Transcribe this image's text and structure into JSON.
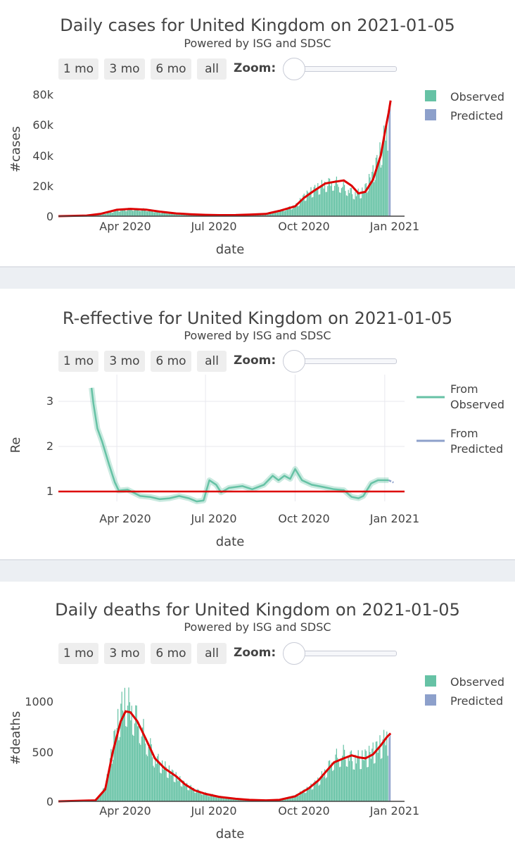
{
  "controls": {
    "buttons": [
      "1 mo",
      "3 mo",
      "6 mo",
      "all"
    ],
    "zoom_label": "Zoom:"
  },
  "colors": {
    "observed": "#66c2a5",
    "predicted": "#8da0cb",
    "model_line": "#dd0000",
    "reference_line": "#dd0000"
  },
  "chart_data": [
    {
      "type": "bar",
      "title": "Daily cases for United Kingdom on 2021-01-05",
      "subtitle": "Powered by ISG and SDSC",
      "xlabel": "date",
      "ylabel": "#cases",
      "x_ticks": [
        "Apr 2020",
        "Jul 2020",
        "Oct 2020",
        "Jan 2021"
      ],
      "y_ticks": [
        "0",
        "20k",
        "40k",
        "60k",
        "80k"
      ],
      "ylim": [
        0,
        80000
      ],
      "legend": [
        "Observed",
        "Predicted"
      ],
      "legend_position": "top-right",
      "observed": {
        "name": "Observed",
        "points": [
          [
            "2020-02-01",
            0
          ],
          [
            "2020-03-01",
            200
          ],
          [
            "2020-03-15",
            1200
          ],
          [
            "2020-04-01",
            4000
          ],
          [
            "2020-04-15",
            5000
          ],
          [
            "2020-05-01",
            4500
          ],
          [
            "2020-05-15",
            2800
          ],
          [
            "2020-06-01",
            1800
          ],
          [
            "2020-06-15",
            1300
          ],
          [
            "2020-07-01",
            900
          ],
          [
            "2020-07-15",
            650
          ],
          [
            "2020-08-01",
            800
          ],
          [
            "2020-08-15",
            1100
          ],
          [
            "2020-09-01",
            1600
          ],
          [
            "2020-09-15",
            3800
          ],
          [
            "2020-10-01",
            7000
          ],
          [
            "2020-10-10",
            13500
          ],
          [
            "2020-10-20",
            18000
          ],
          [
            "2020-11-01",
            22000
          ],
          [
            "2020-11-10",
            23500
          ],
          [
            "2020-11-20",
            20000
          ],
          [
            "2020-12-01",
            15000
          ],
          [
            "2020-12-10",
            17000
          ],
          [
            "2020-12-20",
            30000
          ],
          [
            "2020-12-28",
            45000
          ],
          [
            "2021-01-02",
            58000
          ],
          [
            "2021-01-04",
            60000
          ]
        ]
      },
      "predicted": {
        "name": "Predicted",
        "points": [
          [
            "2021-01-05",
            70000
          ],
          [
            "2021-01-06",
            74000
          ],
          [
            "2021-01-07",
            76000
          ]
        ]
      },
      "model_curve": [
        [
          "2020-02-01",
          0
        ],
        [
          "2020-03-01",
          400
        ],
        [
          "2020-03-15",
          1500
        ],
        [
          "2020-04-01",
          4200
        ],
        [
          "2020-04-15",
          4800
        ],
        [
          "2020-05-01",
          4300
        ],
        [
          "2020-05-15",
          3000
        ],
        [
          "2020-06-01",
          1800
        ],
        [
          "2020-06-15",
          1300
        ],
        [
          "2020-07-01",
          900
        ],
        [
          "2020-07-15",
          700
        ],
        [
          "2020-08-01",
          750
        ],
        [
          "2020-08-15",
          1000
        ],
        [
          "2020-09-01",
          1500
        ],
        [
          "2020-09-15",
          3500
        ],
        [
          "2020-10-01",
          6500
        ],
        [
          "2020-10-10",
          12000
        ],
        [
          "2020-10-20",
          16500
        ],
        [
          "2020-11-01",
          21500
        ],
        [
          "2020-11-10",
          22500
        ],
        [
          "2020-11-20",
          23500
        ],
        [
          "2020-11-28",
          20000
        ],
        [
          "2020-12-05",
          15000
        ],
        [
          "2020-12-12",
          16000
        ],
        [
          "2020-12-20",
          24000
        ],
        [
          "2020-12-28",
          40000
        ],
        [
          "2021-01-02",
          58000
        ],
        [
          "2021-01-05",
          68000
        ],
        [
          "2021-01-07",
          76000
        ]
      ]
    },
    {
      "type": "line",
      "title": "R-effective for United Kingdom on 2021-01-05",
      "subtitle": "Powered by ISG and SDSC",
      "xlabel": "date",
      "ylabel": "Re",
      "x_ticks": [
        "Apr 2020",
        "Jul 2020",
        "Oct 2020",
        "Jan 2021"
      ],
      "y_ticks": [
        "1",
        "2",
        "3"
      ],
      "ylim": [
        0.4,
        3.5
      ],
      "grid": true,
      "legend": [
        "From Observed",
        "From Predicted"
      ],
      "legend_position": "top-right",
      "reference_value": 1,
      "observed": {
        "name": "From Observed",
        "points": [
          [
            "2020-03-06",
            3.3
          ],
          [
            "2020-03-08",
            2.95
          ],
          [
            "2020-03-12",
            2.4
          ],
          [
            "2020-03-17",
            2.1
          ],
          [
            "2020-03-24",
            1.6
          ],
          [
            "2020-03-30",
            1.2
          ],
          [
            "2020-04-03",
            1.02
          ],
          [
            "2020-04-12",
            1.04
          ],
          [
            "2020-04-25",
            0.9
          ],
          [
            "2020-05-05",
            0.88
          ],
          [
            "2020-05-15",
            0.83
          ],
          [
            "2020-05-25",
            0.85
          ],
          [
            "2020-06-04",
            0.9
          ],
          [
            "2020-06-14",
            0.85
          ],
          [
            "2020-06-22",
            0.78
          ],
          [
            "2020-06-29",
            0.8
          ],
          [
            "2020-07-05",
            1.25
          ],
          [
            "2020-07-12",
            1.15
          ],
          [
            "2020-07-17",
            0.98
          ],
          [
            "2020-07-25",
            1.08
          ],
          [
            "2020-08-08",
            1.12
          ],
          [
            "2020-08-18",
            1.05
          ],
          [
            "2020-08-30",
            1.15
          ],
          [
            "2020-09-08",
            1.35
          ],
          [
            "2020-09-14",
            1.25
          ],
          [
            "2020-09-20",
            1.35
          ],
          [
            "2020-09-26",
            1.28
          ],
          [
            "2020-10-01",
            1.5
          ],
          [
            "2020-10-08",
            1.25
          ],
          [
            "2020-10-18",
            1.15
          ],
          [
            "2020-10-30",
            1.1
          ],
          [
            "2020-11-10",
            1.05
          ],
          [
            "2020-11-20",
            1.03
          ],
          [
            "2020-11-28",
            0.88
          ],
          [
            "2020-12-05",
            0.85
          ],
          [
            "2020-12-10",
            0.9
          ],
          [
            "2020-12-18",
            1.18
          ],
          [
            "2020-12-25",
            1.25
          ],
          [
            "2021-01-05",
            1.25
          ]
        ]
      },
      "predicted": {
        "name": "From Predicted",
        "points": [
          [
            "2021-01-05",
            1.25
          ],
          [
            "2021-01-10",
            1.2
          ]
        ]
      }
    },
    {
      "type": "bar",
      "title": "Daily deaths for United Kingdom on 2021-01-05",
      "subtitle": "Powered by ISG and SDSC",
      "xlabel": "date",
      "ylabel": "#deaths",
      "x_ticks": [
        "Apr 2020",
        "Jul 2020",
        "Oct 2020",
        "Jan 2021"
      ],
      "y_ticks": [
        "0",
        "500",
        "1000"
      ],
      "ylim": [
        0,
        1250
      ],
      "legend": [
        "Observed",
        "Predicted"
      ],
      "legend_position": "top-right",
      "observed": {
        "name": "Observed",
        "points": [
          [
            "2020-02-01",
            0
          ],
          [
            "2020-03-10",
            5
          ],
          [
            "2020-03-20",
            150
          ],
          [
            "2020-03-28",
            600
          ],
          [
            "2020-04-05",
            950
          ],
          [
            "2020-04-10",
            1050
          ],
          [
            "2020-04-15",
            950
          ],
          [
            "2020-04-22",
            850
          ],
          [
            "2020-05-01",
            650
          ],
          [
            "2020-05-10",
            450
          ],
          [
            "2020-05-20",
            350
          ],
          [
            "2020-06-01",
            250
          ],
          [
            "2020-06-10",
            170
          ],
          [
            "2020-06-20",
            120
          ],
          [
            "2020-07-01",
            80
          ],
          [
            "2020-07-15",
            50
          ],
          [
            "2020-08-01",
            25
          ],
          [
            "2020-08-15",
            15
          ],
          [
            "2020-09-01",
            10
          ],
          [
            "2020-09-15",
            18
          ],
          [
            "2020-10-01",
            60
          ],
          [
            "2020-10-15",
            140
          ],
          [
            "2020-10-25",
            220
          ],
          [
            "2020-11-01",
            320
          ],
          [
            "2020-11-10",
            450
          ],
          [
            "2020-11-20",
            500
          ],
          [
            "2020-11-30",
            440
          ],
          [
            "2020-12-08",
            450
          ],
          [
            "2020-12-15",
            480
          ],
          [
            "2020-12-25",
            560
          ],
          [
            "2021-01-02",
            650
          ],
          [
            "2021-01-04",
            630
          ]
        ]
      },
      "predicted": {
        "name": "Predicted",
        "points": [
          [
            "2021-01-05",
            640
          ],
          [
            "2021-01-06",
            660
          ],
          [
            "2021-01-07",
            680
          ]
        ]
      },
      "model_curve": [
        [
          "2020-02-01",
          0
        ],
        [
          "2020-03-10",
          10
        ],
        [
          "2020-03-20",
          120
        ],
        [
          "2020-03-28",
          500
        ],
        [
          "2020-04-05",
          800
        ],
        [
          "2020-04-10",
          900
        ],
        [
          "2020-04-15",
          890
        ],
        [
          "2020-04-22",
          800
        ],
        [
          "2020-05-01",
          620
        ],
        [
          "2020-05-10",
          430
        ],
        [
          "2020-05-20",
          330
        ],
        [
          "2020-06-01",
          250
        ],
        [
          "2020-06-10",
          170
        ],
        [
          "2020-06-20",
          110
        ],
        [
          "2020-07-01",
          75
        ],
        [
          "2020-07-15",
          45
        ],
        [
          "2020-08-01",
          25
        ],
        [
          "2020-08-15",
          15
        ],
        [
          "2020-09-01",
          10
        ],
        [
          "2020-09-15",
          15
        ],
        [
          "2020-10-01",
          50
        ],
        [
          "2020-10-15",
          130
        ],
        [
          "2020-10-25",
          210
        ],
        [
          "2020-11-01",
          290
        ],
        [
          "2020-11-10",
          390
        ],
        [
          "2020-11-20",
          430
        ],
        [
          "2020-11-28",
          460
        ],
        [
          "2020-12-05",
          440
        ],
        [
          "2020-12-12",
          430
        ],
        [
          "2020-12-20",
          470
        ],
        [
          "2020-12-28",
          560
        ],
        [
          "2021-01-03",
          640
        ],
        [
          "2021-01-07",
          680
        ]
      ]
    }
  ]
}
